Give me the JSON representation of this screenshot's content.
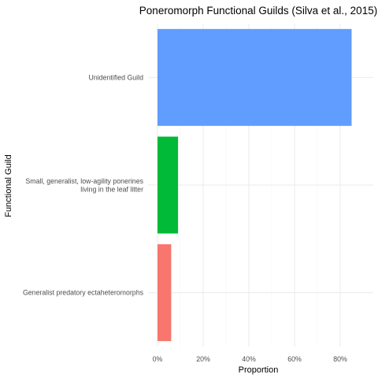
{
  "chart_data": {
    "type": "bar",
    "orientation": "horizontal",
    "title": "Poneromorph Functional Guilds (Silva et al., 2015)",
    "xlabel": "Proportion",
    "ylabel": "Functional Guild",
    "categories": [
      [
        "Unidentified Guild"
      ],
      [
        "Small, generalist, low-agility ponerines",
        "living in the leaf litter"
      ],
      [
        "Generalist predatory ectaheteromorphs"
      ]
    ],
    "values": [
      0.85,
      0.09,
      0.06
    ],
    "colors": [
      "#619CFF",
      "#00BA38",
      "#F8766D"
    ],
    "xlim": [
      0,
      0.9
    ],
    "xticks": [
      0,
      0.2,
      0.4,
      0.6,
      0.8
    ],
    "xtick_labels": [
      "0%",
      "20%",
      "40%",
      "60%",
      "80%"
    ],
    "grid": true,
    "legend": "none"
  }
}
